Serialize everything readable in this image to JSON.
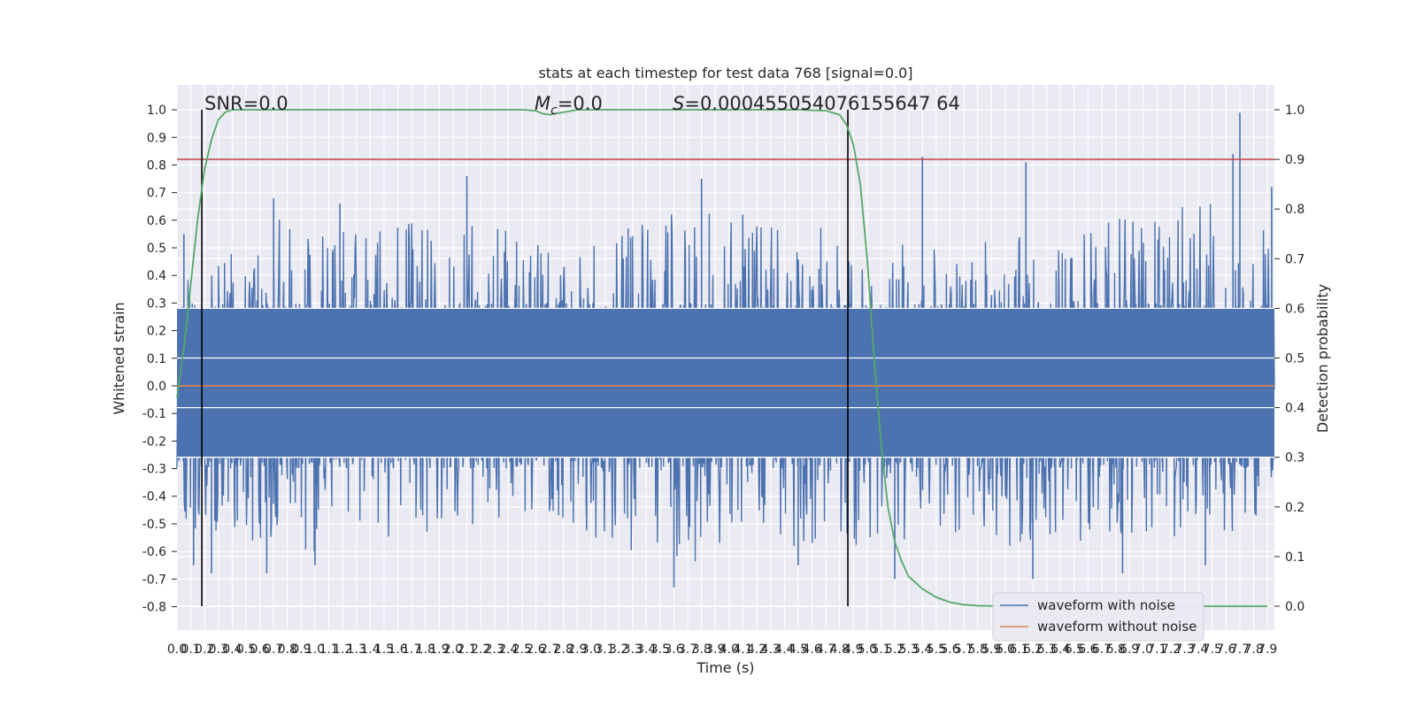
{
  "chart_data": {
    "type": "line",
    "title": "stats at each timestep for test data 768 [signal=0.0]",
    "xlabel": "Time (s)",
    "ylabel_left": "Whitened strain",
    "ylabel_right": "Detection probability",
    "xlim": [
      0.0,
      7.95
    ],
    "ylim_left": [
      -0.885,
      1.09
    ],
    "ylim_right": [
      0.0,
      1.0
    ],
    "grid": true,
    "legend_position": "lower-right",
    "annotations": {
      "snr": "SNR=0.0",
      "mc_symbol": "M",
      "mc_subscript": "c",
      "mc_value": "=0.0",
      "s_symbol": "S",
      "s_value": "=0.000455054076155647 64"
    },
    "x_tick_labels": [
      "0.0",
      "0.1",
      "0.2",
      "0.3",
      "0.4",
      "0.5",
      "0.6",
      "0.7",
      "0.8",
      "0.9",
      "1.0",
      "1.1",
      "1.2",
      "1.3",
      "1.4",
      "1.5",
      "1.6",
      "1.7",
      "1.8",
      "1.9",
      "2.0",
      "2.1",
      "2.2",
      "2.3",
      "2.4",
      "2.5",
      "2.6",
      "2.7",
      "2.8",
      "2.9",
      "3.0",
      "3.1",
      "3.2",
      "3.3",
      "3.4",
      "3.5",
      "3.6",
      "3.7",
      "3.8",
      "3.9",
      "4.0",
      "4.1",
      "4.2",
      "4.3",
      "4.4",
      "4.5",
      "4.6",
      "4.7",
      "4.8",
      "4.9",
      "5.0",
      "5.1",
      "5.2",
      "5.3",
      "5.4",
      "5.5",
      "5.6",
      "5.7",
      "5.8",
      "5.9",
      "6.0",
      "6.1",
      "6.2",
      "6.3",
      "6.4",
      "6.5",
      "6.6",
      "6.7",
      "6.8",
      "6.9",
      "7.0",
      "7.1",
      "7.2",
      "7.3",
      "7.4",
      "7.5",
      "7.6",
      "7.7",
      "7.8",
      "7.9"
    ],
    "y_left_tick_labels": [
      "-0.8",
      "-0.7",
      "-0.6",
      "-0.5",
      "-0.4",
      "-0.3",
      "-0.2",
      "-0.1",
      "0.0",
      "0.1",
      "0.2",
      "0.3",
      "0.4",
      "0.5",
      "0.6",
      "0.7",
      "0.8",
      "0.9",
      "1.0"
    ],
    "y_right_tick_labels": [
      "0.0",
      "0.1",
      "0.2",
      "0.3",
      "0.4",
      "0.5",
      "0.6",
      "0.7",
      "0.8",
      "0.9",
      "1.0"
    ],
    "series": [
      {
        "name": "waveform with noise",
        "axis": "left",
        "color": "#4c72b0",
        "envelope": {
          "x": [
            0.0,
            0.25,
            0.5,
            0.75,
            1.0,
            1.25,
            1.5,
            1.75,
            2.0,
            2.25,
            2.5,
            2.75,
            3.0,
            3.25,
            3.5,
            3.75,
            4.0,
            4.25,
            4.5,
            4.75,
            5.0,
            5.25,
            5.5,
            5.75,
            6.0,
            6.25,
            6.5,
            6.75,
            7.0,
            7.25,
            7.5,
            7.75,
            7.95
          ],
          "upper": [
            0.5,
            0.45,
            0.5,
            0.62,
            0.55,
            0.6,
            0.58,
            0.6,
            0.62,
            0.58,
            0.55,
            0.55,
            0.58,
            0.6,
            0.62,
            0.65,
            0.65,
            0.6,
            0.55,
            0.6,
            0.45,
            0.55,
            0.5,
            0.55,
            0.55,
            0.6,
            0.55,
            0.6,
            0.65,
            0.65,
            0.7,
            0.65,
            0.6
          ],
          "lower": [
            -0.5,
            -0.55,
            -0.6,
            -0.58,
            -0.6,
            -0.55,
            -0.55,
            -0.55,
            -0.5,
            -0.55,
            -0.5,
            -0.55,
            -0.55,
            -0.6,
            -0.6,
            -0.65,
            -0.55,
            -0.5,
            -0.6,
            -0.55,
            -0.65,
            -0.6,
            -0.55,
            -0.55,
            -0.6,
            -0.55,
            -0.6,
            -0.55,
            -0.55,
            -0.6,
            -0.55,
            -0.55,
            -0.5
          ]
        },
        "peaks": [
          [
            0.05,
            0.55
          ],
          [
            0.7,
            0.68
          ],
          [
            1.18,
            0.66
          ],
          [
            2.1,
            0.76
          ],
          [
            3.8,
            0.75
          ],
          [
            5.4,
            0.83
          ],
          [
            6.15,
            0.81
          ],
          [
            7.65,
            0.84
          ],
          [
            7.7,
            0.99
          ],
          [
            7.93,
            0.72
          ],
          [
            0.12,
            -0.65
          ],
          [
            0.25,
            -0.68
          ],
          [
            0.65,
            -0.68
          ],
          [
            1.0,
            -0.65
          ],
          [
            3.6,
            -0.73
          ],
          [
            4.5,
            -0.65
          ],
          [
            5.2,
            -0.7
          ],
          [
            6.2,
            -0.7
          ],
          [
            6.85,
            -0.68
          ],
          [
            7.45,
            -0.65
          ]
        ]
      },
      {
        "name": "waveform without noise",
        "axis": "left",
        "color": "#dd8452",
        "x": [
          0.0,
          7.95
        ],
        "y": [
          0.0,
          0.0
        ]
      },
      {
        "axis": "right",
        "color": "#55a868",
        "x": [
          0.0,
          0.05,
          0.1,
          0.15,
          0.2,
          0.25,
          0.3,
          0.35,
          0.4,
          0.5,
          0.6,
          1.0,
          2.0,
          2.5,
          2.6,
          2.65,
          2.7,
          2.8,
          2.9,
          3.0,
          3.5,
          4.0,
          4.5,
          4.7,
          4.8,
          4.85,
          4.9,
          4.95,
          5.0,
          5.05,
          5.1,
          5.15,
          5.2,
          5.25,
          5.3,
          5.4,
          5.5,
          5.6,
          5.7,
          5.8,
          6.0,
          7.0,
          7.9
        ],
        "y": [
          0.42,
          0.52,
          0.65,
          0.78,
          0.88,
          0.94,
          0.98,
          0.995,
          1.0,
          1.0,
          1.0,
          1.0,
          1.0,
          1.0,
          0.998,
          0.992,
          0.99,
          0.995,
          1.0,
          1.0,
          1.0,
          1.0,
          1.0,
          0.998,
          0.99,
          0.97,
          0.93,
          0.85,
          0.7,
          0.5,
          0.33,
          0.2,
          0.13,
          0.09,
          0.06,
          0.035,
          0.018,
          0.008,
          0.003,
          0.001,
          0.0,
          0.0,
          0.0
        ]
      }
    ],
    "reference_lines": {
      "red_horizontal_right": 0.9,
      "red_color": "#c44e52",
      "vertical_x": [
        0.18,
        4.86
      ]
    }
  }
}
